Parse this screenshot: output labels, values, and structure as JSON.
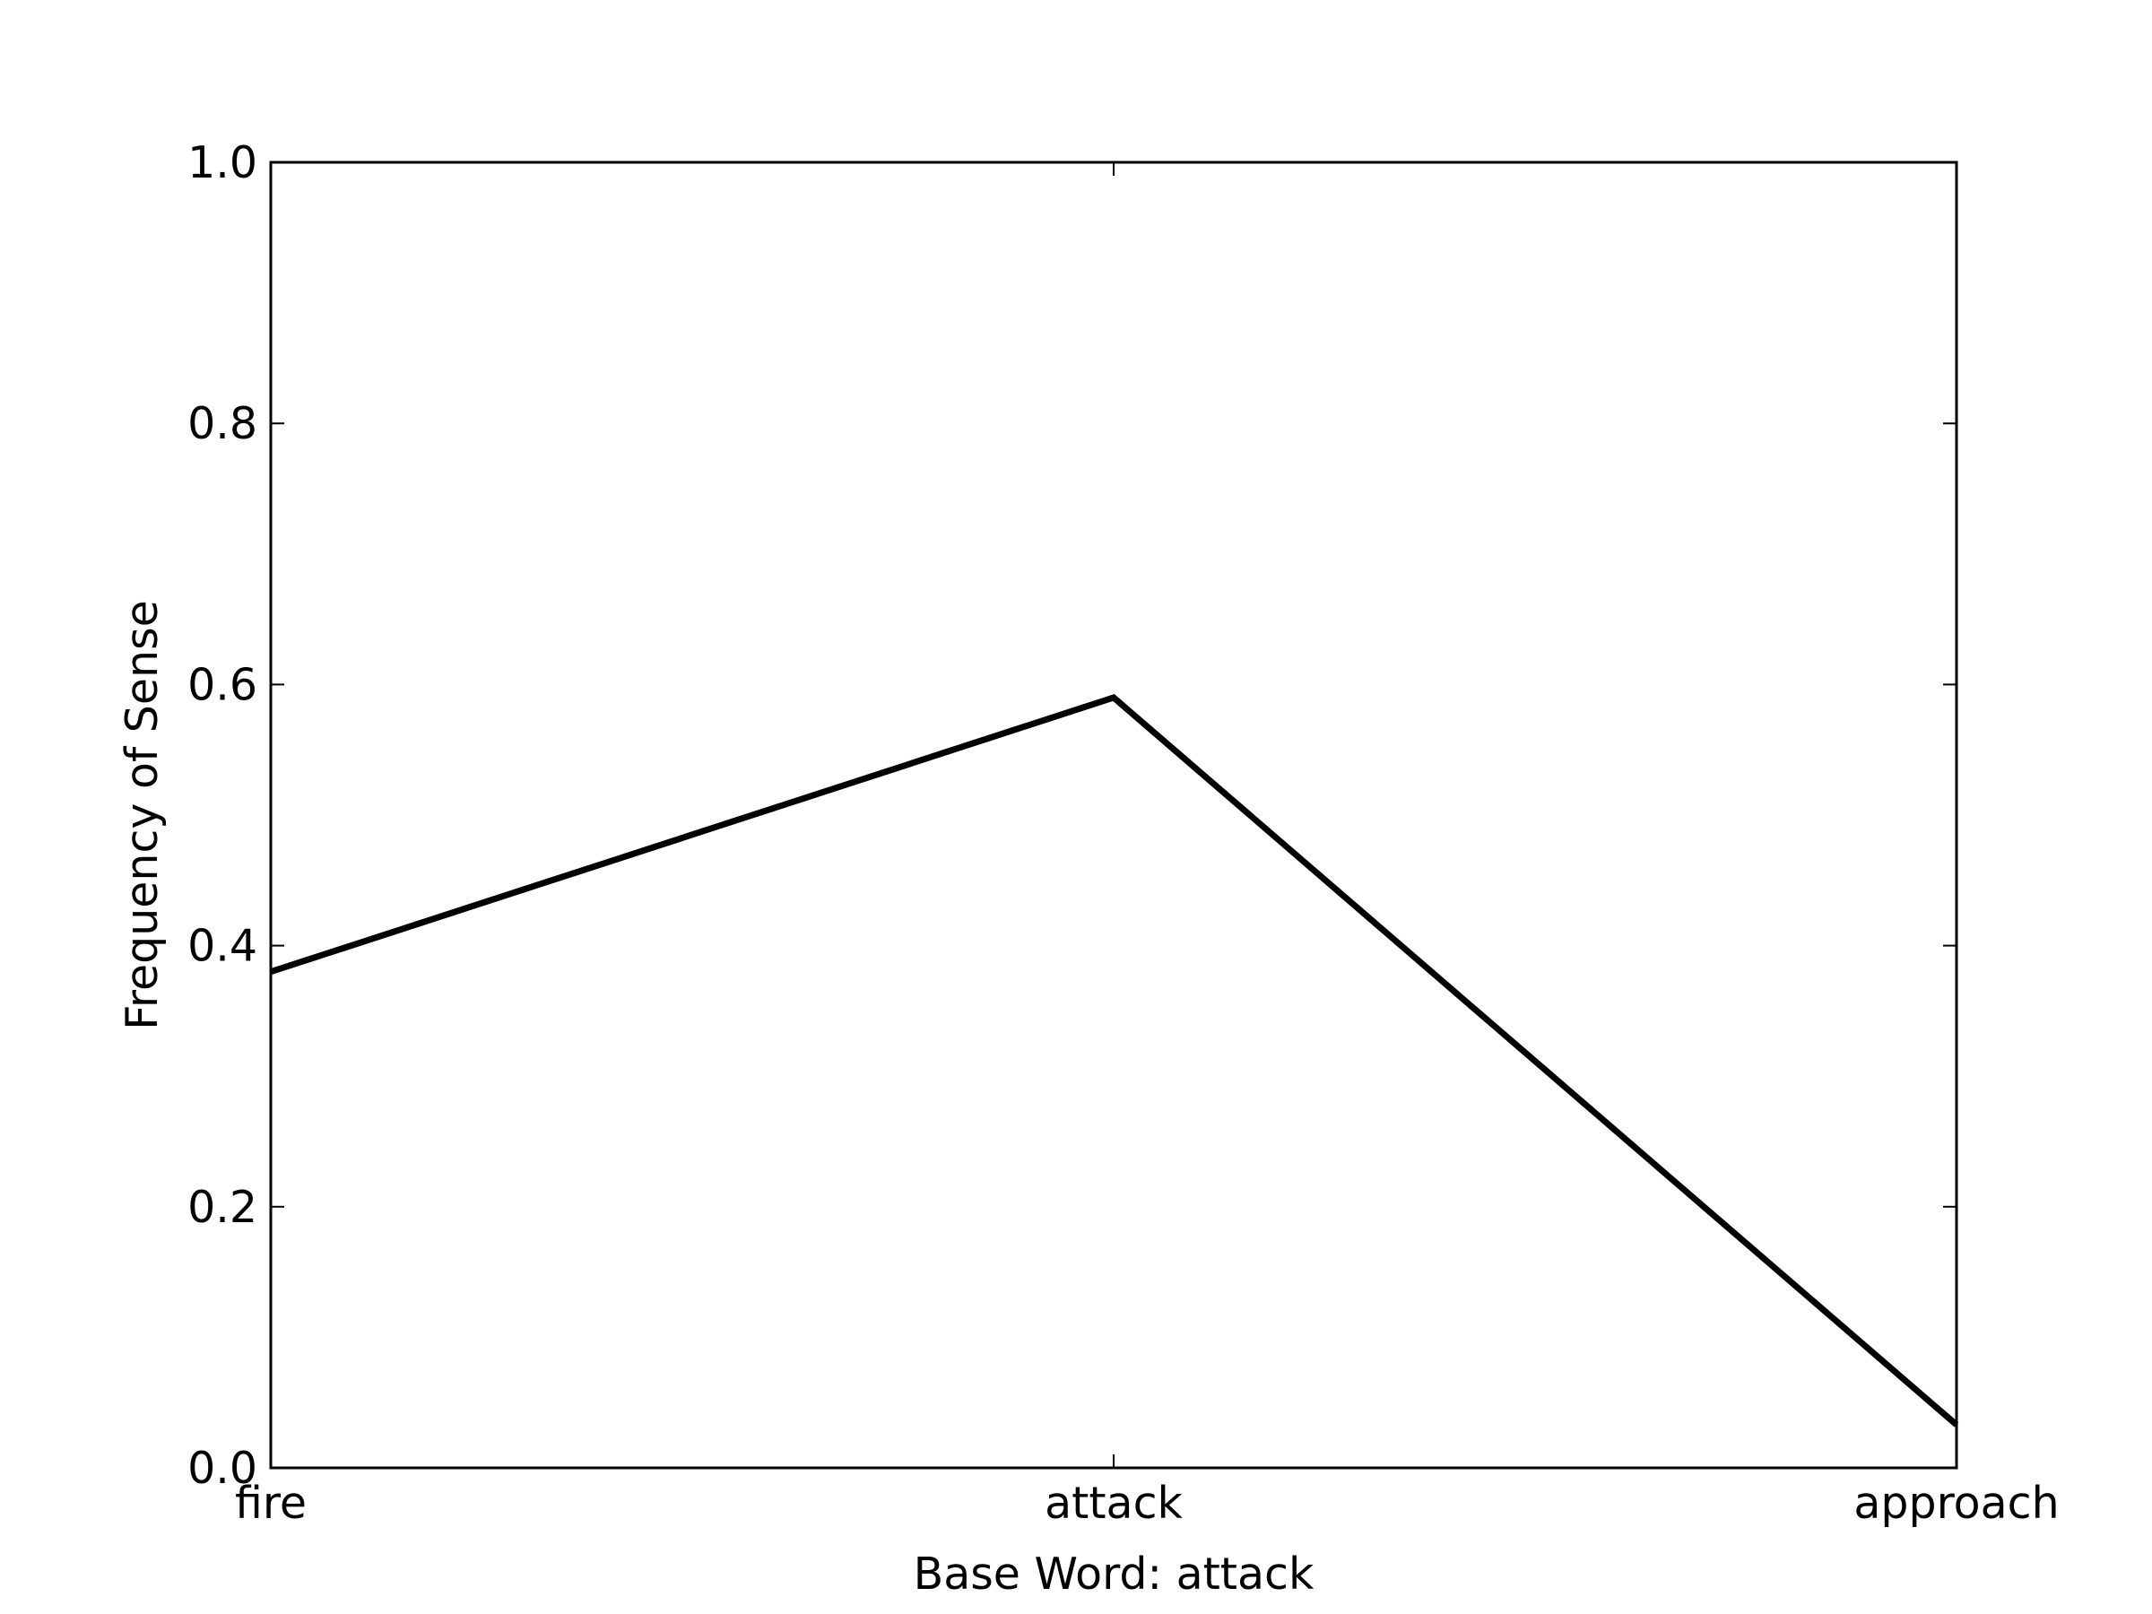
{
  "chart_data": {
    "type": "line",
    "title": "",
    "xlabel": "Base Word: attack",
    "ylabel": "Frequency of Sense",
    "categories": [
      "fire",
      "attack",
      "approach"
    ],
    "series": [
      {
        "values": [
          0.38,
          0.59,
          0.033
        ]
      }
    ],
    "ylim": [
      0.0,
      1.0
    ],
    "yticks": [
      "0.0",
      "0.2",
      "0.4",
      "0.6",
      "0.8",
      "1.0"
    ],
    "grid": false,
    "legend": "none",
    "line_color": "#000000"
  }
}
